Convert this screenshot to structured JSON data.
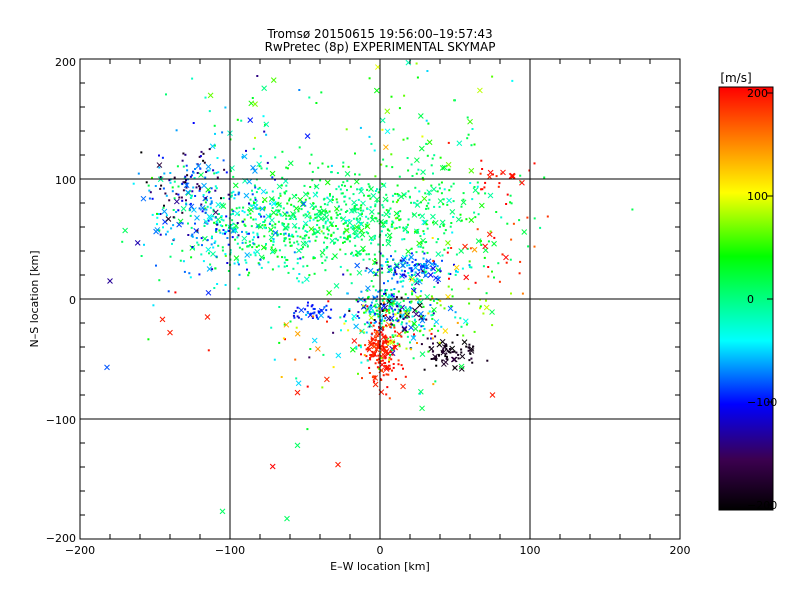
{
  "chart_data": {
    "type": "scatter",
    "title_line1": "Tromsø 20150615 19:56:00–19:57:43",
    "title_line2": "RwPretec (8p) EXPERIMENTAL SKYMAP",
    "xlabel": "E–W location [km]",
    "ylabel": "N–S location [km]",
    "xlim": [
      -200,
      200
    ],
    "ylim": [
      -200,
      200
    ],
    "xticks": [
      -200,
      -100,
      0,
      100,
      200
    ],
    "yticks": [
      -200,
      -100,
      0,
      100,
      200
    ],
    "xtick_labels": [
      "−200",
      "−100",
      "0",
      "100",
      "200"
    ],
    "ytick_labels": [
      "200",
      "100",
      "0",
      "−100",
      "−200"
    ],
    "grid": true,
    "colorbar": {
      "unit_label": "[m/s]",
      "range": [
        -200,
        200
      ],
      "ticks": [
        200,
        100,
        0,
        -100,
        -200
      ],
      "tick_labels": [
        "200",
        "100",
        "0",
        "−100",
        "−200"
      ],
      "colors": [
        "#000000",
        "#3c0050",
        "#0000ff",
        "#00ffff",
        "#00ff00",
        "#ffff00",
        "#ff0000"
      ]
    },
    "markers": [
      "dot",
      "x"
    ],
    "clusters": [
      {
        "cx": -35,
        "cy": 65,
        "sx": 50,
        "sy": 22,
        "v": 10,
        "vs": 22,
        "n": 900
      },
      {
        "cx": -110,
        "cy": 70,
        "sx": 25,
        "sy": 28,
        "v": -60,
        "vs": 30,
        "n": 260
      },
      {
        "cx": -130,
        "cy": 100,
        "sx": 15,
        "sy": 15,
        "v": -150,
        "vs": 30,
        "n": 60
      },
      {
        "cx": 20,
        "cy": 25,
        "sx": 14,
        "sy": 6,
        "v": -70,
        "vs": 35,
        "n": 140
      },
      {
        "cx": 8,
        "cy": -10,
        "sx": 14,
        "sy": 10,
        "v": -40,
        "vs": 70,
        "n": 260
      },
      {
        "cx": 2,
        "cy": -45,
        "sx": 6,
        "sy": 12,
        "v": 190,
        "vs": 10,
        "n": 170
      },
      {
        "cx": 45,
        "cy": -45,
        "sx": 10,
        "sy": 6,
        "v": -185,
        "vs": 10,
        "n": 70
      },
      {
        "cx": -45,
        "cy": -12,
        "sx": 8,
        "sy": 4,
        "v": -90,
        "vs": 15,
        "n": 40
      },
      {
        "cx": 80,
        "cy": 100,
        "sx": 10,
        "sy": 10,
        "v": 190,
        "vs": 10,
        "n": 25
      },
      {
        "cx": 30,
        "cy": 130,
        "sx": 25,
        "sy": 40,
        "v": 30,
        "vs": 40,
        "n": 70
      },
      {
        "cx": 40,
        "cy": -10,
        "sx": 20,
        "sy": 15,
        "v": 40,
        "vs": 50,
        "n": 80
      },
      {
        "cx": -20,
        "cy": -40,
        "sx": 40,
        "sy": 25,
        "v": 60,
        "vs": 100,
        "n": 80
      },
      {
        "cx": 70,
        "cy": 40,
        "sx": 20,
        "sy": 20,
        "v": 180,
        "vs": 20,
        "n": 25
      },
      {
        "cx": -90,
        "cy": 160,
        "sx": 30,
        "sy": 20,
        "v": -20,
        "vs": 50,
        "n": 30
      }
    ],
    "outliers": [
      [
        -115,
        -15,
        190
      ],
      [
        -145,
        -17,
        190
      ],
      [
        -140,
        -28,
        190
      ],
      [
        -55,
        -78,
        190
      ],
      [
        -55,
        -122,
        10
      ],
      [
        -62,
        -183,
        10
      ],
      [
        -105,
        -177,
        10
      ],
      [
        -28,
        -138,
        190
      ],
      [
        75,
        -80,
        190
      ],
      [
        -182,
        -57,
        -80
      ],
      [
        -180,
        15,
        -130
      ]
    ]
  }
}
